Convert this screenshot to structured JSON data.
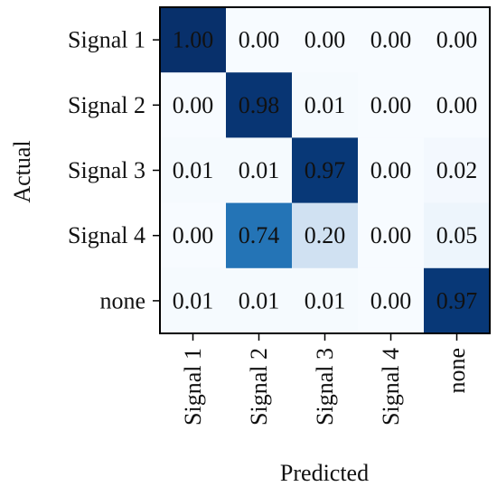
{
  "chart_data": {
    "type": "heatmap",
    "title": "",
    "xlabel": "Predicted",
    "ylabel": "Actual",
    "x_categories": [
      "Signal 1",
      "Signal 2",
      "Signal 3",
      "Signal 4",
      "none"
    ],
    "y_categories": [
      "Signal 1",
      "Signal 2",
      "Signal 3",
      "Signal 4",
      "none"
    ],
    "values": [
      [
        1.0,
        0.0,
        0.0,
        0.0,
        0.0
      ],
      [
        0.0,
        0.98,
        0.01,
        0.0,
        0.0
      ],
      [
        0.01,
        0.01,
        0.97,
        0.0,
        0.02
      ],
      [
        0.0,
        0.74,
        0.2,
        0.0,
        0.05
      ],
      [
        0.01,
        0.01,
        0.01,
        0.0,
        0.97
      ]
    ],
    "value_format": "0.00",
    "colormap": "Blues",
    "color_low": "#f7fbff",
    "color_high": "#08306b",
    "value_range": [
      0,
      1
    ],
    "x_tick_rotation": "vertical",
    "grid": false,
    "legend": "none"
  }
}
